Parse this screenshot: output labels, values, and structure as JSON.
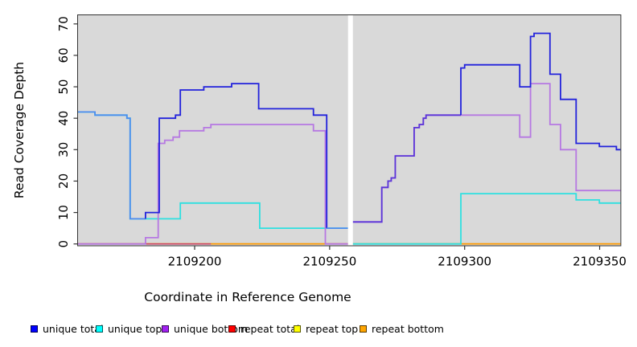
{
  "chart_data": {
    "type": "line",
    "subtype": "step",
    "title": "",
    "xlabel": "Coordinate in Reference Genome",
    "ylabel": "Read Coverage Depth",
    "xlim": [
      2109156.8,
      2109357.7
    ],
    "ylim": [
      0,
      73
    ],
    "xticks": [
      2109200,
      2109250,
      2109300,
      2109350
    ],
    "yticks": [
      0,
      10,
      20,
      30,
      40,
      50,
      60,
      70
    ],
    "panel_bg": "#d9d9d9",
    "grid": false,
    "legend_position": "bottom",
    "gap_region": {
      "start": 2109256.8,
      "end": 2109258.6
    },
    "legend": [
      {
        "label": "unique total",
        "color": "#0000ff"
      },
      {
        "label": "unique top",
        "color": "#00ffff"
      },
      {
        "label": "unique bottom",
        "color": "#a020f0"
      },
      {
        "label": "repeat total",
        "color": "#ff0000"
      },
      {
        "label": "repeat top",
        "color": "#ffff00"
      },
      {
        "label": "repeat bottom",
        "color": "#ffa500"
      }
    ],
    "legend_item_lefts": [
      38,
      119,
      201,
      284,
      365,
      447
    ],
    "lines": [
      {
        "name": "repeat-total-run1",
        "series": "repeat total",
        "color": "#e02020",
        "width": 1.6,
        "steps": [
          [
            2109156.8,
            0
          ],
          [
            2109256.8,
            0
          ]
        ]
      },
      {
        "name": "repeat-total-run2",
        "series": "repeat total",
        "color": "#e02020",
        "width": 1.6,
        "steps": [
          [
            2109258.6,
            0
          ],
          [
            2109357.7,
            0
          ]
        ]
      },
      {
        "name": "repeat-top-run1",
        "series": "repeat top",
        "color": "#f5f500",
        "width": 1.6,
        "steps": [
          [
            2109156.8,
            0
          ],
          [
            2109256.8,
            0
          ]
        ]
      },
      {
        "name": "repeat-top-run2",
        "series": "repeat top",
        "color": "#f5f500",
        "width": 1.6,
        "steps": [
          [
            2109258.6,
            0
          ],
          [
            2109357.7,
            0
          ]
        ]
      },
      {
        "name": "repeat-bottom-run1",
        "series": "repeat bottom",
        "color": "#ff9a00",
        "width": 1.6,
        "steps": [
          [
            2109156.8,
            0
          ],
          [
            2109256.8,
            0
          ]
        ]
      },
      {
        "name": "repeat-bottom-run2",
        "series": "repeat bottom",
        "color": "#ff9a00",
        "width": 1.6,
        "steps": [
          [
            2109258.6,
            0
          ],
          [
            2109357.7,
            0
          ]
        ]
      },
      {
        "name": "baseline-blend-left",
        "series": "overlap tint",
        "color": "#cc4466",
        "width": 1.6,
        "steps": [
          [
            2109156.8,
            0
          ],
          [
            2109206.0,
            0
          ]
        ]
      },
      {
        "name": "baseline-blend-mid",
        "series": "overlap tint",
        "color": "#cc4466",
        "width": 1.6,
        "steps": [
          [
            2109248.4,
            0
          ],
          [
            2109256.8,
            0
          ]
        ]
      },
      {
        "name": "baseline-blend-green",
        "series": "overlap tint",
        "color": "#7fcc88",
        "width": 1.6,
        "steps": [
          [
            2109258.6,
            0
          ],
          [
            2109298.6,
            0
          ]
        ]
      },
      {
        "name": "unique-top-run1",
        "series": "unique top",
        "color": "#2ee0e0",
        "width": 1.8,
        "steps": [
          [
            2109156.8,
            42
          ],
          [
            2109163.1,
            41
          ],
          [
            2109174.9,
            40
          ],
          [
            2109176.1,
            8
          ],
          [
            2109194.7,
            13
          ],
          [
            2109224.1,
            5
          ],
          [
            2109256.8,
            5
          ]
        ]
      },
      {
        "name": "unique-top-run2",
        "series": "unique top",
        "color": "#2ee0e0",
        "width": 1.8,
        "steps": [
          [
            2109258.6,
            0
          ],
          [
            2109298.6,
            16
          ],
          [
            2109341.3,
            14
          ],
          [
            2109349.9,
            13
          ],
          [
            2109357.7,
            13
          ]
        ]
      },
      {
        "name": "unique-bottom-run1",
        "series": "unique bottom",
        "color": "#b678e2",
        "width": 1.8,
        "steps": [
          [
            2109156.8,
            0
          ],
          [
            2109181.8,
            2
          ],
          [
            2109186.5,
            32
          ],
          [
            2109188.9,
            33
          ],
          [
            2109192.0,
            34
          ],
          [
            2109194.4,
            36
          ],
          [
            2109203.4,
            37
          ],
          [
            2109206.0,
            38
          ],
          [
            2109244.0,
            36
          ],
          [
            2109248.4,
            0
          ],
          [
            2109256.8,
            0
          ]
        ]
      },
      {
        "name": "unique-bottom-run2",
        "series": "unique bottom",
        "color": "#b678e2",
        "width": 1.8,
        "steps": [
          [
            2109258.6,
            7
          ],
          [
            2109269.3,
            18
          ],
          [
            2109271.6,
            20
          ],
          [
            2109272.8,
            21
          ],
          [
            2109274.3,
            28
          ],
          [
            2109281.3,
            37
          ],
          [
            2109283.2,
            38
          ],
          [
            2109284.7,
            40
          ],
          [
            2109285.7,
            41
          ],
          [
            2109320.4,
            34
          ],
          [
            2109324.4,
            51
          ],
          [
            2109331.6,
            38
          ],
          [
            2109335.5,
            30
          ],
          [
            2109341.3,
            17
          ],
          [
            2109357.7,
            17
          ]
        ]
      },
      {
        "name": "unique-total-seg1",
        "series": "unique total",
        "color": "#4d8cee",
        "width": 1.8,
        "steps": [
          [
            2109156.8,
            42
          ],
          [
            2109163.1,
            41
          ],
          [
            2109174.9,
            40
          ],
          [
            2109176.1,
            8
          ],
          [
            2109181.8,
            8
          ]
        ]
      },
      {
        "name": "unique-total-seg2",
        "series": "unique total",
        "color": "#2222dc",
        "width": 1.8,
        "steps": [
          [
            2109181.8,
            8
          ],
          [
            2109181.8,
            10
          ],
          [
            2109186.9,
            40
          ],
          [
            2109192.9,
            41
          ],
          [
            2109194.7,
            49
          ],
          [
            2109203.4,
            50
          ],
          [
            2109213.7,
            51
          ],
          [
            2109223.7,
            43
          ],
          [
            2109244.0,
            41
          ],
          [
            2109248.9,
            5
          ]
        ]
      },
      {
        "name": "unique-total-seg3",
        "series": "unique total",
        "color": "#4d8cee",
        "width": 1.8,
        "steps": [
          [
            2109248.9,
            5
          ],
          [
            2109256.8,
            5
          ]
        ]
      },
      {
        "name": "unique-total-seg4",
        "series": "unique total",
        "color": "#5b35d8",
        "width": 1.8,
        "steps": [
          [
            2109258.6,
            7
          ],
          [
            2109269.3,
            18
          ],
          [
            2109271.6,
            20
          ],
          [
            2109272.8,
            21
          ],
          [
            2109274.3,
            28
          ],
          [
            2109281.3,
            37
          ],
          [
            2109283.2,
            38
          ],
          [
            2109284.7,
            40
          ],
          [
            2109285.7,
            41
          ],
          [
            2109298.6,
            41
          ]
        ]
      },
      {
        "name": "unique-total-seg5",
        "series": "unique total",
        "color": "#2222dc",
        "width": 1.8,
        "steps": [
          [
            2109298.6,
            41
          ],
          [
            2109298.6,
            56
          ],
          [
            2109300.0,
            57
          ],
          [
            2109320.4,
            50
          ],
          [
            2109324.4,
            66
          ],
          [
            2109325.7,
            67
          ],
          [
            2109331.6,
            54
          ],
          [
            2109335.5,
            46
          ],
          [
            2109341.3,
            32
          ],
          [
            2109349.9,
            31
          ],
          [
            2109356.2,
            30
          ],
          [
            2109357.7,
            30
          ]
        ]
      }
    ]
  }
}
